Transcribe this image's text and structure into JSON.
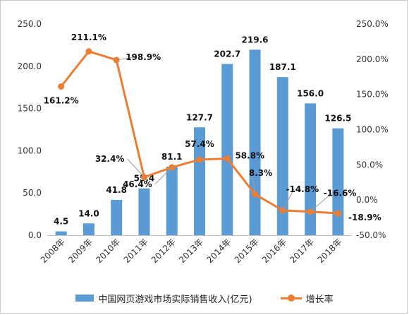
{
  "chart_data": {
    "type": "bar",
    "categories": [
      "2008年",
      "2009年",
      "2010年",
      "2011年",
      "2012年",
      "2013年",
      "2014年",
      "2015年",
      "2016年",
      "2017年",
      "2018年"
    ],
    "series": [
      {
        "name": "中国网页游戏市场实际销售收入(亿元)",
        "type": "bar",
        "axis": "left",
        "color": "#5b9bd5",
        "values": [
          4.5,
          14.0,
          41.8,
          55.4,
          81.1,
          127.7,
          202.7,
          219.6,
          187.1,
          156.0,
          126.5
        ],
        "labels": [
          "4.5",
          "14.0",
          "41.8",
          "55.4",
          "81.1",
          "127.7",
          "202.7",
          "219.6",
          "187.1",
          "156.0",
          "126.5"
        ]
      },
      {
        "name": "增长率",
        "type": "line",
        "axis": "right",
        "color": "#ed7d31",
        "values": [
          161.2,
          211.1,
          198.9,
          32.4,
          46.4,
          57.4,
          58.8,
          8.3,
          -14.8,
          -16.6,
          -18.9
        ],
        "labels": [
          "161.2%",
          "211.1%",
          "198.9%",
          "32.4%",
          "46.4%",
          "57.4%",
          "58.8%",
          "8.3%",
          "-14.8%",
          "-16.6%",
          "-18.9%"
        ]
      }
    ],
    "y_left": {
      "min": 0,
      "max": 250,
      "ticks": [
        "0.0",
        "50.0",
        "100.0",
        "150.0",
        "200.0",
        "250.0"
      ]
    },
    "y_right": {
      "min": -50,
      "max": 250,
      "ticks": [
        "-50.0%",
        "0.0%",
        "50.0%",
        "100.0%",
        "150.0%",
        "200.0%",
        "250.0%"
      ]
    },
    "grid": false,
    "legend_position": "bottom"
  }
}
